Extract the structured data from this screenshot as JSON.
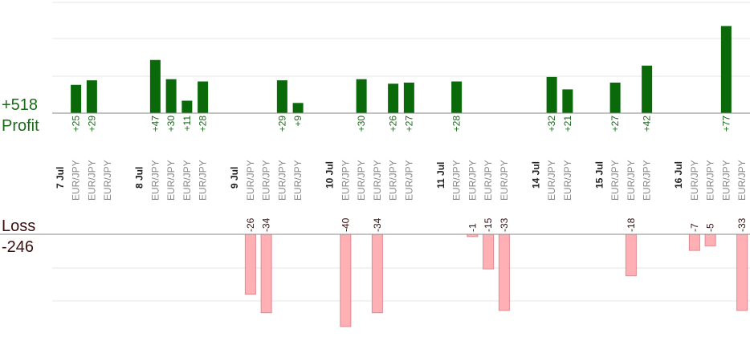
{
  "summary": {
    "profit_total": "+518",
    "profit_label": "Profit",
    "loss_label": "Loss",
    "loss_total": "-246"
  },
  "colors": {
    "profit_bar": "#0a6a0a",
    "profit_text": "#1a6a1a",
    "loss_bar": "#ffb0b4",
    "loss_bar_edge": "#e28890",
    "loss_text": "#3a1010",
    "grid": "#e4e4e4",
    "axis": "#888888",
    "pair_text": "#888888",
    "date_text": "#222222"
  },
  "chart_data": {
    "type": "bar",
    "ylim_profit": [
      0,
      100
    ],
    "ylim_loss": [
      -40,
      0
    ],
    "categories": [
      {
        "label": "7 Jul",
        "kind": "date"
      },
      {
        "label": "EUR/JPY",
        "kind": "trade",
        "value": 25
      },
      {
        "label": "EUR/JPY",
        "kind": "trade",
        "value": 29
      },
      {
        "label": "EUR/JPY",
        "kind": "trade",
        "value": null
      },
      {
        "label": "",
        "kind": "gap"
      },
      {
        "label": "8 Jul",
        "kind": "date"
      },
      {
        "label": "EUR/JPY",
        "kind": "trade",
        "value": 47
      },
      {
        "label": "EUR/JPY",
        "kind": "trade",
        "value": 30
      },
      {
        "label": "EUR/JPY",
        "kind": "trade",
        "value": 11
      },
      {
        "label": "EUR/JPY",
        "kind": "trade",
        "value": 28
      },
      {
        "label": "",
        "kind": "gap"
      },
      {
        "label": "9 Jul",
        "kind": "date"
      },
      {
        "label": "EUR/JPY",
        "kind": "trade",
        "value": -26
      },
      {
        "label": "EUR/JPY",
        "kind": "trade",
        "value": -34
      },
      {
        "label": "EUR/JPY",
        "kind": "trade",
        "value": 29
      },
      {
        "label": "EUR/JPY",
        "kind": "trade",
        "value": 9
      },
      {
        "label": "",
        "kind": "gap"
      },
      {
        "label": "10 Jul",
        "kind": "date"
      },
      {
        "label": "EUR/JPY",
        "kind": "trade",
        "value": -40
      },
      {
        "label": "EUR/JPY",
        "kind": "trade",
        "value": 30
      },
      {
        "label": "EUR/JPY",
        "kind": "trade",
        "value": -34
      },
      {
        "label": "EUR/JPY",
        "kind": "trade",
        "value": 26
      },
      {
        "label": "EUR/JPY",
        "kind": "trade",
        "value": 27
      },
      {
        "label": "",
        "kind": "gap"
      },
      {
        "label": "11 Jul",
        "kind": "date"
      },
      {
        "label": "EUR/JPY",
        "kind": "trade",
        "value": 28
      },
      {
        "label": "EUR/JPY",
        "kind": "trade",
        "value": -1
      },
      {
        "label": "EUR/JPY",
        "kind": "trade",
        "value": -15
      },
      {
        "label": "EUR/JPY",
        "kind": "trade",
        "value": -33
      },
      {
        "label": "",
        "kind": "gap"
      },
      {
        "label": "14 Jul",
        "kind": "date"
      },
      {
        "label": "EUR/JPY",
        "kind": "trade",
        "value": 32
      },
      {
        "label": "EUR/JPY",
        "kind": "trade",
        "value": 21
      },
      {
        "label": "",
        "kind": "gap"
      },
      {
        "label": "15 Jul",
        "kind": "date"
      },
      {
        "label": "EUR/JPY",
        "kind": "trade",
        "value": 27
      },
      {
        "label": "EUR/JPY",
        "kind": "trade",
        "value": -18
      },
      {
        "label": "EUR/JPY",
        "kind": "trade",
        "value": 42
      },
      {
        "label": "",
        "kind": "gap"
      },
      {
        "label": "16 Jul",
        "kind": "date"
      },
      {
        "label": "EUR/JPY",
        "kind": "trade",
        "value": -7
      },
      {
        "label": "EUR/JPY",
        "kind": "trade",
        "value": -5
      },
      {
        "label": "EUR/JPY",
        "kind": "trade",
        "value": 77
      },
      {
        "label": "EUR/JPY",
        "kind": "trade",
        "value": -33
      }
    ]
  }
}
